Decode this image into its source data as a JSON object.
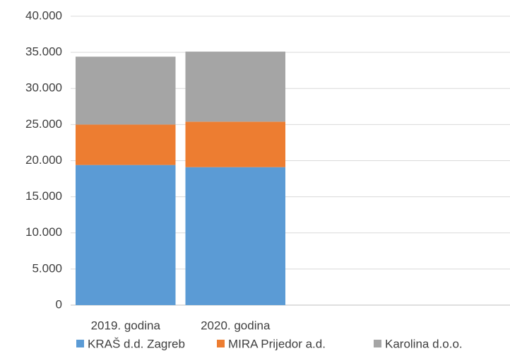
{
  "chart_data": {
    "type": "stacked-bar",
    "categories": [
      "2019. godina",
      "2020. godina",
      null,
      null
    ],
    "series": [
      {
        "name": "KRAŠ d.d. Zagreb",
        "color": "#5b9bd5",
        "values": [
          19400,
          19100,
          null,
          null
        ]
      },
      {
        "name": "MIRA Prijedor a.d.",
        "color": "#ed7d31",
        "values": [
          5600,
          6300,
          null,
          null
        ]
      },
      {
        "name": "Karolina d.o.o.",
        "color": "#a5a5a5",
        "values": [
          9400,
          9700,
          null,
          null
        ]
      }
    ],
    "ylim": [
      0,
      40000
    ],
    "yticks": [
      0,
      {
        "value": 5000,
        "label": "5.000"
      },
      {
        "value": 10000,
        "label": "10.000"
      },
      {
        "value": 15000,
        "label": "15.000"
      },
      {
        "value": 20000,
        "label": "20.000"
      },
      {
        "value": 25000,
        "label": "25.000"
      },
      {
        "value": 30000,
        "label": "30.000"
      },
      {
        "value": 35000,
        "label": "35.000"
      },
      {
        "value": 40000,
        "label": "40.000"
      }
    ],
    "grid": true,
    "legend": "bottom"
  }
}
